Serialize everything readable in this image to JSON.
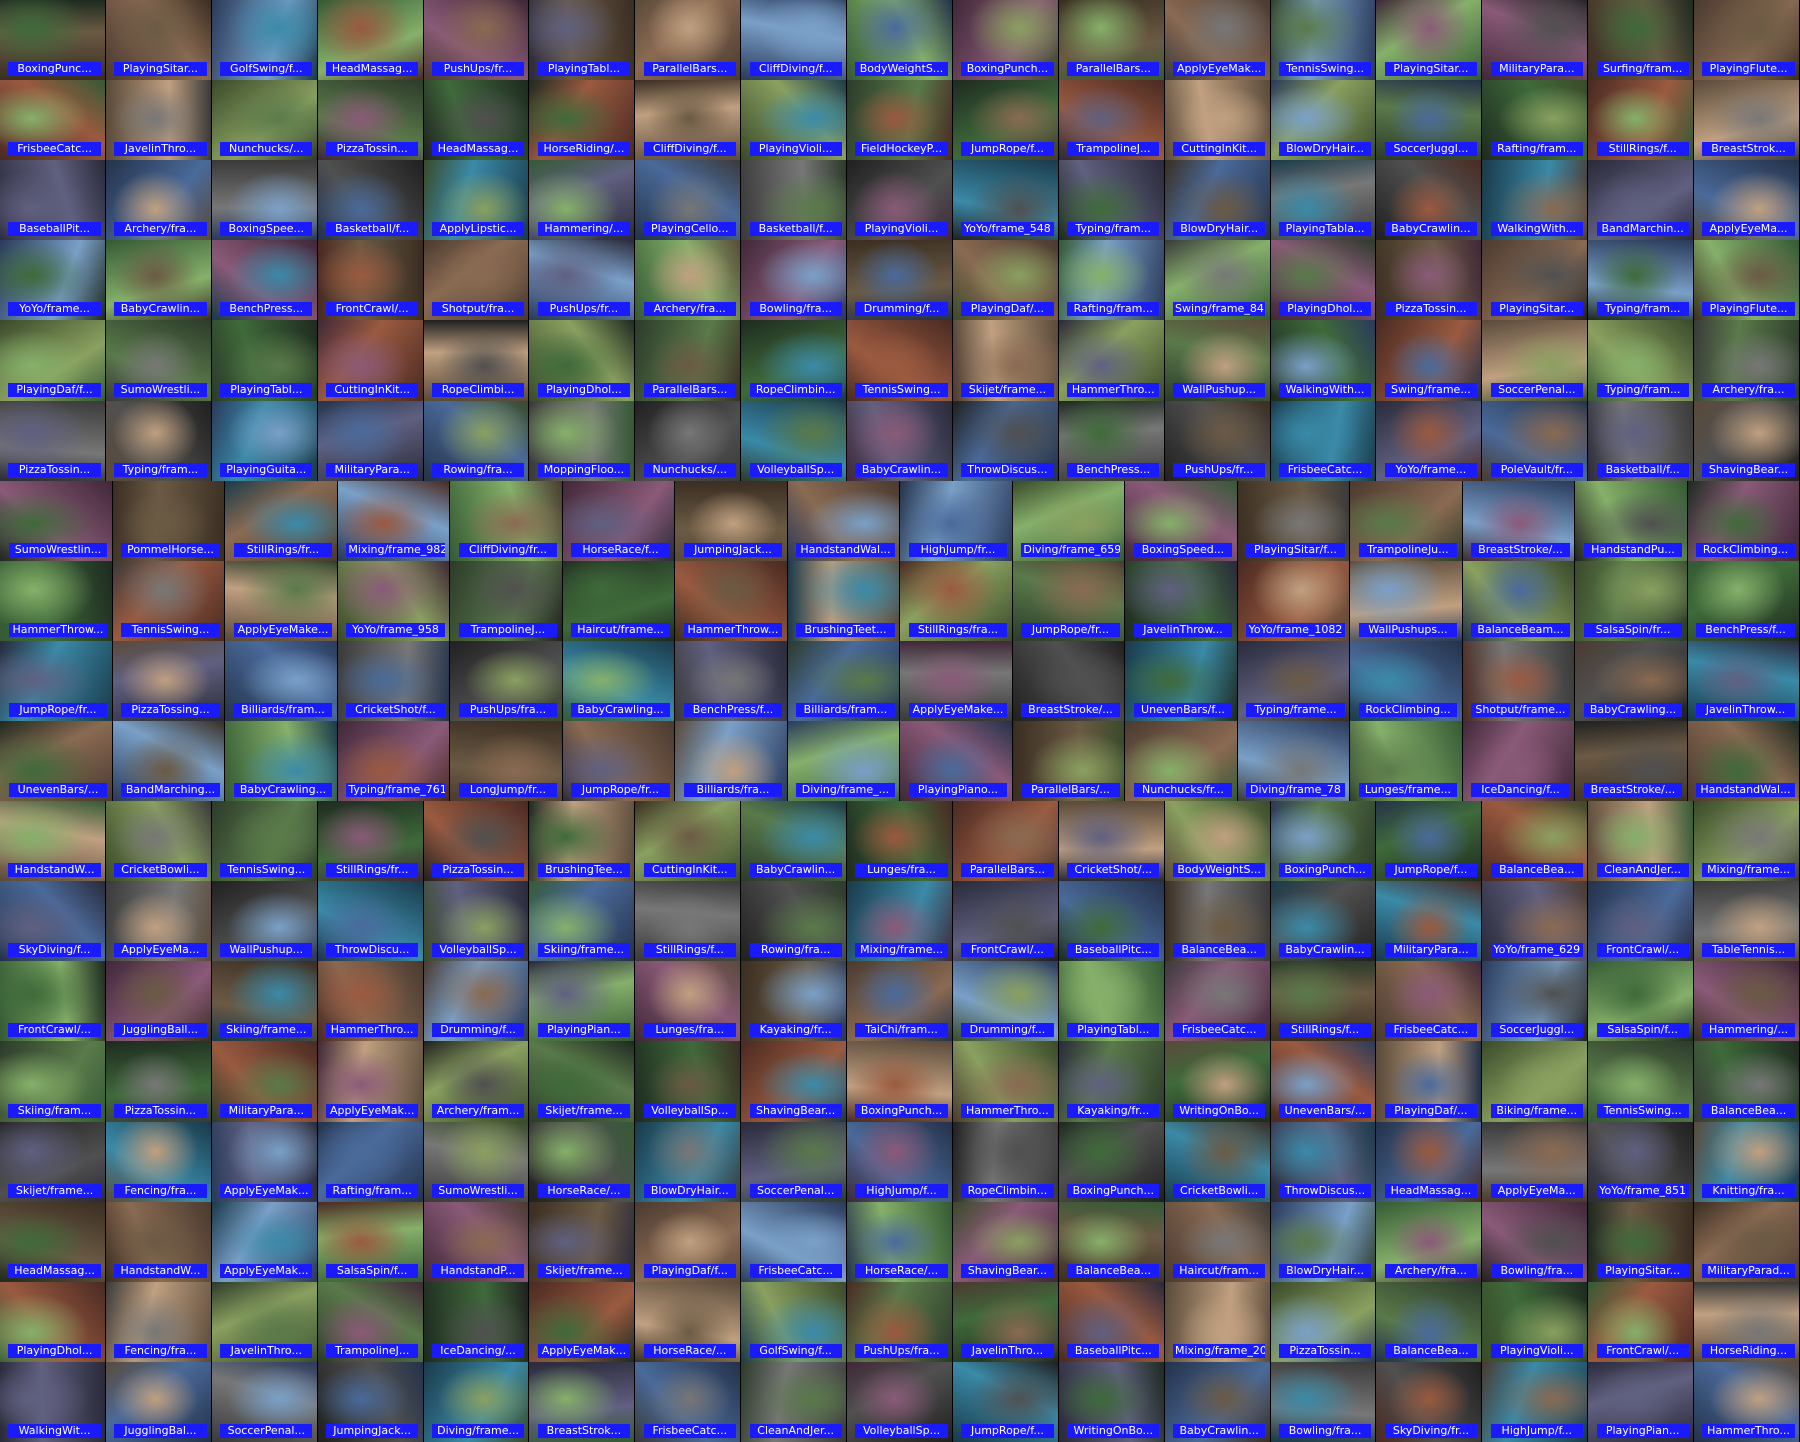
{
  "mosaic": {
    "label_color": "#1a1aff",
    "rows": [
      [
        "BoxingPunc...",
        "PlayingSitar...",
        "GolfSwing/f...",
        "HeadMassag...",
        "PushUps/fr...",
        "PlayingTabl...",
        "ParallelBars...",
        "CliffDiving/f...",
        "BodyWeightS...",
        "BoxingPunch...",
        "ParallelBars...",
        "ApplyEyeMak...",
        "TennisSwing...",
        "PlayingSitar...",
        "MilitaryPara...",
        "Surfing/fram...",
        "PlayingFlute..."
      ],
      [
        "FrisbeeCatc...",
        "JavelinThro...",
        "Nunchucks/...",
        "PizzaTossin...",
        "HeadMassag...",
        "HorseRiding/...",
        "CliffDiving/f...",
        "PlayingVioli...",
        "FieldHockeyP...",
        "JumpRope/f...",
        "TrampolineJ...",
        "CuttingInKit...",
        "BlowDryHair...",
        "SoccerJuggl...",
        "Rafting/fram...",
        "StillRings/f...",
        "BreastStrok..."
      ],
      [
        "BaseballPit...",
        "Archery/fra...",
        "BoxingSpee...",
        "Basketball/f...",
        "ApplyLipstic...",
        "Hammering/...",
        "PlayingCello...",
        "Basketball/f...",
        "PlayingVioli...",
        "YoYo/frame_548",
        "Typing/fram...",
        "BlowDryHair...",
        "PlayingTabla...",
        "BabyCrawlin...",
        "WalkingWith...",
        "BandMarchin...",
        "ApplyEyeMa..."
      ],
      [
        "YoYo/frame...",
        "BabyCrawlin...",
        "BenchPress...",
        "FrontCrawl/...",
        "Shotput/fra...",
        "PushUps/fr...",
        "Archery/fra...",
        "Bowling/fra...",
        "Drumming/f...",
        "PlayingDaf/...",
        "Rafting/fram...",
        "Swing/frame_84",
        "PlayingDhol...",
        "PizzaTossin...",
        "PlayingSitar...",
        "Typing/fram...",
        "PlayingFlute..."
      ],
      [
        "PlayingDaf/f...",
        "SumoWrestli...",
        "PlayingTabl...",
        "CuttingInKit...",
        "RopeClimbi...",
        "PlayingDhol...",
        "ParallelBars...",
        "RopeClimbin...",
        "TennisSwing...",
        "Skijet/frame...",
        "HammerThro...",
        "WallPushup...",
        "WalkingWith...",
        "Swing/frame...",
        "SoccerPenal...",
        "Typing/fram...",
        "Archery/fra..."
      ],
      [
        "PizzaTossin...",
        "Typing/fram...",
        "PlayingGuita...",
        "MilitaryPara...",
        "Rowing/fra...",
        "MoppingFloo...",
        "Nunchucks/...",
        "VolleyballSp...",
        "BabyCrawlin...",
        "ThrowDiscus...",
        "BenchPress...",
        "PushUps/fr...",
        "FrisbeeCatc...",
        "YoYo/frame...",
        "PoleVault/fr...",
        "Basketball/f...",
        "ShavingBear..."
      ],
      [
        "SumoWrestlin...",
        "PommelHorse...",
        "StillRings/fr...",
        "Mixing/frame_982",
        "CliffDiving/fr...",
        "HorseRace/f...",
        "JumpingJack...",
        "HandstandWal...",
        "HighJump/fr...",
        "Diving/frame_659",
        "BoxingSpeed...",
        "PlayingSitar/f...",
        "TrampolineJu...",
        "BreastStroke/...",
        "HandstandPu...",
        "RockClimbing..."
      ],
      [
        "HammerThrow...",
        "TennisSwing...",
        "ApplyEyeMake...",
        "YoYo/frame_958",
        "TrampolineJ...",
        "Haircut/frame...",
        "HammerThrow...",
        "BrushingTeet...",
        "StillRings/fra...",
        "JumpRope/fr...",
        "JavelinThrow...",
        "YoYo/frame_1082",
        "WallPushups...",
        "BalanceBeam...",
        "SalsaSpin/fr...",
        "BenchPress/f..."
      ],
      [
        "JumpRope/fr...",
        "PizzaTossing...",
        "Billiards/fram...",
        "CricketShot/f...",
        "PushUps/fra...",
        "BabyCrawling...",
        "BenchPress/f...",
        "Billiards/fram...",
        "ApplyEyeMake...",
        "BreastStroke/...",
        "UnevenBars/f...",
        "Typing/frame...",
        "RockClimbing...",
        "Shotput/frame...",
        "BabyCrawling...",
        "JavelinThrow..."
      ],
      [
        "UnevenBars/...",
        "BandMarching...",
        "BabyCrawling...",
        "Typing/frame_761",
        "LongJump/fr...",
        "JumpRope/fr...",
        "Billiards/fra...",
        "Diving/frame_...",
        "PlayingPiano...",
        "ParallelBars/...",
        "Nunchucks/fr...",
        "Diving/frame_78",
        "Lunges/frame...",
        "IceDancing/f...",
        "BreastStroke/...",
        "HandstandWal..."
      ],
      [
        "HandstandW...",
        "CricketBowli...",
        "TennisSwing...",
        "StillRings/fr...",
        "PizzaTossin...",
        "BrushingTee...",
        "CuttingInKit...",
        "BabyCrawlin...",
        "Lunges/fra...",
        "ParallelBars...",
        "CricketShot/...",
        "BodyWeightS...",
        "BoxingPunch...",
        "JumpRope/f...",
        "BalanceBea...",
        "CleanAndJer...",
        "Mixing/frame..."
      ],
      [
        "SkyDiving/f...",
        "ApplyEyeMa...",
        "WallPushup...",
        "ThrowDiscu...",
        "VolleyballSp...",
        "Skiing/frame...",
        "StillRings/f...",
        "Rowing/fra...",
        "Mixing/frame...",
        "FrontCrawl/...",
        "BaseballPitc...",
        "BalanceBea...",
        "BabyCrawlin...",
        "MilitaryPara...",
        "YoYo/frame_629",
        "FrontCrawl/...",
        "TableTennis..."
      ],
      [
        "FrontCrawl/...",
        "JugglingBall...",
        "Skiing/frame...",
        "HammerThro...",
        "Drumming/f...",
        "PlayingPian...",
        "Lunges/fra...",
        "Kayaking/fr...",
        "TaiChi/fram...",
        "Drumming/f...",
        "PlayingTabl...",
        "FrisbeeCatc...",
        "StillRings/f...",
        "FrisbeeCatc...",
        "SoccerJuggl...",
        "SalsaSpin/f...",
        "Hammering/..."
      ],
      [
        "Skiing/fram...",
        "PizzaTossin...",
        "MilitaryPara...",
        "ApplyEyeMak...",
        "Archery/fram...",
        "Skijet/frame...",
        "VolleyballSp...",
        "ShavingBear...",
        "BoxingPunch...",
        "HammerThro...",
        "Kayaking/fr...",
        "WritingOnBo...",
        "UnevenBars/...",
        "PlayingDaf/...",
        "Biking/frame...",
        "TennisSwing...",
        "BalanceBea..."
      ],
      [
        "Skijet/frame...",
        "Fencing/fra...",
        "ApplyEyeMak...",
        "Rafting/fram...",
        "SumoWrestli...",
        "HorseRace/...",
        "BlowDryHair...",
        "SoccerPenal...",
        "HighJump/f...",
        "RopeClimbin...",
        "BoxingPunch...",
        "CricketBowli...",
        "ThrowDiscus...",
        "HeadMassag...",
        "ApplyEyeMa...",
        "YoYo/frame_851",
        "Knitting/fra..."
      ],
      [
        "HeadMassag...",
        "HandstandW...",
        "ApplyEyeMak...",
        "SalsaSpin/f...",
        "HandstandP...",
        "Skijet/frame...",
        "PlayingDaf/f...",
        "FrisbeeCatc...",
        "HorseRace/...",
        "ShavingBear...",
        "BalanceBea...",
        "Haircut/fram...",
        "BlowDryHair...",
        "Archery/fra...",
        "Bowling/fra...",
        "PlayingSitar...",
        "MilitaryParad..."
      ],
      [
        "PlayingDhol...",
        "Fencing/fra...",
        "JavelinThro...",
        "TrampolineJ...",
        "IceDancing/...",
        "ApplyEyeMak...",
        "HorseRace/...",
        "GolfSwing/f...",
        "PushUps/fra...",
        "JavelinThro...",
        "BaseballPitc...",
        "Mixing/frame_20",
        "PizzaTossin...",
        "BalanceBea...",
        "PlayingVioli...",
        "FrontCrawl/...",
        "HorseRiding..."
      ],
      [
        "WalkingWit...",
        "JugglingBal...",
        "SoccerPenal...",
        "JumpingJack...",
        "Diving/frame...",
        "BreastStrok...",
        "FrisbeeCatc...",
        "CleanAndJer...",
        "VolleyballSp...",
        "JumpRope/f...",
        "WritingOnBo...",
        "BabyCrawlin...",
        "Bowling/fra...",
        "SkyDiving/fr...",
        "HighJump/f...",
        "PlayingPian...",
        "HammerThro..."
      ]
    ]
  }
}
